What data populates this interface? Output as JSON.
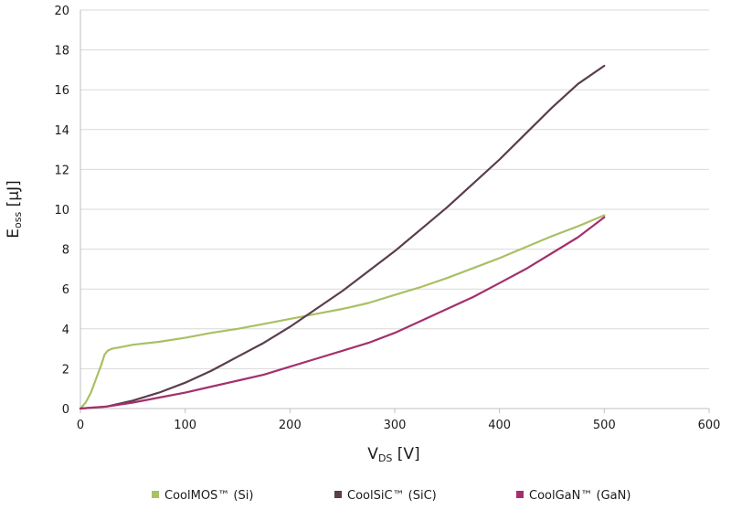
{
  "chart_data": {
    "type": "line",
    "xlabel": {
      "main": "V",
      "sub": "DS",
      "unit": " [V]"
    },
    "ylabel": {
      "main": "E",
      "sub": "oss",
      "unit": " [µJ]"
    },
    "xlim": [
      0,
      600
    ],
    "ylim": [
      0,
      20
    ],
    "x_ticks": [
      "0",
      "100",
      "200",
      "300",
      "400",
      "500",
      "600"
    ],
    "y_ticks": [
      "0",
      "2",
      "4",
      "6",
      "8",
      "10",
      "12",
      "14",
      "16",
      "18",
      "20"
    ],
    "grid": "horizontal",
    "legend": "bottom",
    "series": [
      {
        "name": "CoolMOS™ (Si)",
        "color": "#a9c064",
        "points": [
          [
            0,
            0
          ],
          [
            5,
            0.3
          ],
          [
            10,
            0.8
          ],
          [
            15,
            1.5
          ],
          [
            20,
            2.2
          ],
          [
            23,
            2.7
          ],
          [
            26,
            2.9
          ],
          [
            30,
            3.0
          ],
          [
            40,
            3.1
          ],
          [
            50,
            3.2
          ],
          [
            75,
            3.35
          ],
          [
            100,
            3.55
          ],
          [
            125,
            3.8
          ],
          [
            150,
            4.0
          ],
          [
            175,
            4.25
          ],
          [
            200,
            4.5
          ],
          [
            225,
            4.75
          ],
          [
            250,
            5.0
          ],
          [
            275,
            5.3
          ],
          [
            300,
            5.7
          ],
          [
            325,
            6.1
          ],
          [
            350,
            6.55
          ],
          [
            375,
            7.05
          ],
          [
            400,
            7.55
          ],
          [
            425,
            8.1
          ],
          [
            450,
            8.65
          ],
          [
            475,
            9.15
          ],
          [
            500,
            9.7
          ]
        ]
      },
      {
        "name": "CoolSiC™ (SiC)",
        "color": "#5a3d4e",
        "points": [
          [
            0,
            0
          ],
          [
            25,
            0.1
          ],
          [
            50,
            0.4
          ],
          [
            75,
            0.8
          ],
          [
            100,
            1.3
          ],
          [
            125,
            1.9
          ],
          [
            150,
            2.6
          ],
          [
            175,
            3.3
          ],
          [
            200,
            4.1
          ],
          [
            225,
            5.0
          ],
          [
            250,
            5.9
          ],
          [
            275,
            6.9
          ],
          [
            300,
            7.9
          ],
          [
            325,
            9.0
          ],
          [
            350,
            10.1
          ],
          [
            375,
            11.3
          ],
          [
            400,
            12.5
          ],
          [
            425,
            13.8
          ],
          [
            450,
            15.1
          ],
          [
            475,
            16.3
          ],
          [
            500,
            17.2
          ]
        ]
      },
      {
        "name": "CoolGaN™ (GaN)",
        "color": "#a3306c",
        "points": [
          [
            0,
            0
          ],
          [
            25,
            0.1
          ],
          [
            50,
            0.3
          ],
          [
            75,
            0.55
          ],
          [
            100,
            0.8
          ],
          [
            125,
            1.1
          ],
          [
            150,
            1.4
          ],
          [
            175,
            1.7
          ],
          [
            200,
            2.1
          ],
          [
            225,
            2.5
          ],
          [
            250,
            2.9
          ],
          [
            275,
            3.3
          ],
          [
            300,
            3.8
          ],
          [
            325,
            4.4
          ],
          [
            350,
            5.0
          ],
          [
            375,
            5.6
          ],
          [
            400,
            6.3
          ],
          [
            425,
            7.0
          ],
          [
            450,
            7.8
          ],
          [
            475,
            8.6
          ],
          [
            500,
            9.6
          ]
        ]
      }
    ]
  }
}
